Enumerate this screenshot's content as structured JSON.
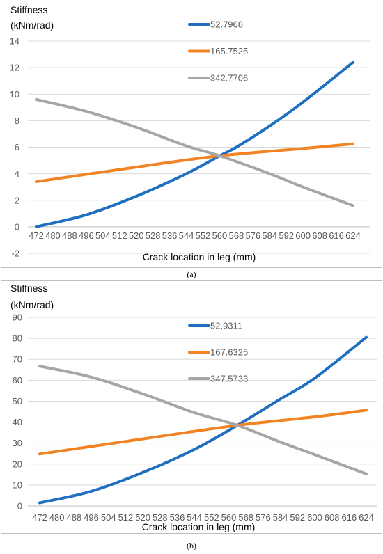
{
  "figures": [
    {
      "caption": "(a)"
    },
    {
      "caption": "(b)"
    }
  ],
  "chart_data": [
    {
      "type": "line",
      "ylabel_line1": "Stiffness",
      "ylabel_line2": "(kNm/rad)",
      "xlabel": "Crack location in leg (mm)",
      "ylim": [
        -2,
        14
      ],
      "yticks": [
        -2,
        0,
        2,
        4,
        6,
        8,
        10,
        12,
        14
      ],
      "xlim": [
        472,
        624
      ],
      "xticks": [
        472,
        480,
        488,
        496,
        504,
        512,
        520,
        528,
        536,
        544,
        552,
        560,
        568,
        576,
        584,
        592,
        600,
        608,
        616,
        624
      ],
      "grid": true,
      "legend_position": "top-center",
      "series": [
        {
          "name": "52.7968",
          "color": "#1f6fc1",
          "x": [
            472,
            496,
            520,
            544,
            560,
            568,
            584,
            600,
            624
          ],
          "values": [
            0.0,
            0.9,
            2.3,
            4.0,
            5.35,
            6.0,
            7.6,
            9.4,
            12.4
          ]
        },
        {
          "name": "165.7525",
          "color": "#f28322",
          "x": [
            472,
            520,
            560,
            600,
            624
          ],
          "values": [
            3.4,
            4.5,
            5.35,
            5.9,
            6.25
          ]
        },
        {
          "name": "342.7706",
          "color": "#a6a6a6",
          "x": [
            472,
            496,
            520,
            544,
            560,
            584,
            600,
            624
          ],
          "values": [
            9.6,
            8.7,
            7.5,
            6.1,
            5.35,
            4.0,
            3.0,
            1.6
          ]
        }
      ]
    },
    {
      "type": "line",
      "ylabel_line1": "Stiffness",
      "ylabel_line2": "(kNm/rad)",
      "xlabel": "Crack location in leg (mm)",
      "ylim": [
        0,
        90
      ],
      "yticks": [
        0,
        10,
        20,
        30,
        40,
        50,
        60,
        70,
        80,
        90
      ],
      "xlim": [
        472,
        624
      ],
      "xticks": [
        472,
        480,
        488,
        496,
        504,
        512,
        520,
        528,
        536,
        544,
        552,
        560,
        568,
        576,
        584,
        592,
        600,
        608,
        616,
        624
      ],
      "grid": true,
      "legend_position": "top-center",
      "series": [
        {
          "name": "52.9311",
          "color": "#1f6fc1",
          "x": [
            472,
            496,
            520,
            544,
            564,
            584,
            600,
            624
          ],
          "values": [
            1.5,
            7.0,
            16.0,
            27.0,
            38.5,
            51.0,
            61.0,
            80.5
          ]
        },
        {
          "name": "167.6325",
          "color": "#f28322",
          "x": [
            472,
            520,
            564,
            600,
            624
          ],
          "values": [
            24.8,
            32.0,
            38.5,
            42.5,
            45.7
          ]
        },
        {
          "name": "347.5733",
          "color": "#a6a6a6",
          "x": [
            472,
            496,
            520,
            544,
            564,
            584,
            600,
            624
          ],
          "values": [
            66.7,
            61.5,
            53.5,
            44.5,
            38.5,
            30.5,
            24.5,
            15.3
          ]
        }
      ]
    }
  ]
}
